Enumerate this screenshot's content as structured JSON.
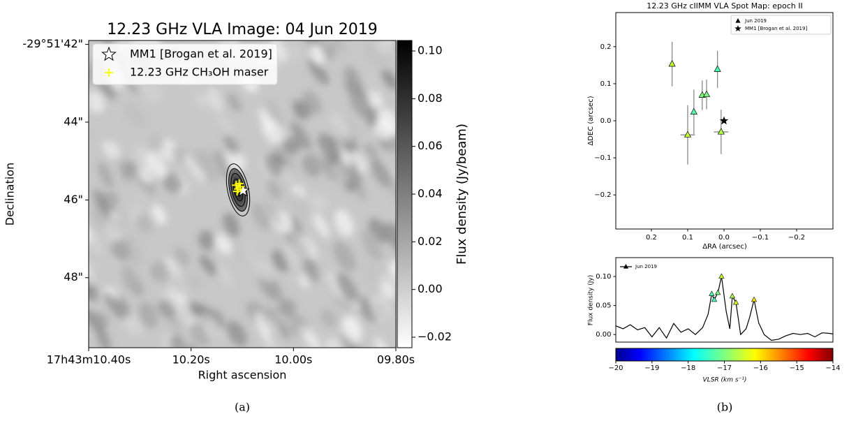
{
  "chart_data": [
    {
      "type": "image",
      "title": "12.23 GHz VLA Image: 04 Jun 2019",
      "x_label": "Right ascension",
      "y_label": "Declination",
      "xlim": [
        10.4,
        9.8
      ],
      "ylim": [
        49.8,
        41.9
      ],
      "xticks": [
        {
          "value": 10.4,
          "label": "17h43m10.40s"
        },
        {
          "value": 10.2,
          "label": "10.20s"
        },
        {
          "value": 10.0,
          "label": "10.00s"
        },
        {
          "value": 9.8,
          "label": "09.80s"
        }
      ],
      "yticks": [
        {
          "value": 42,
          "label": "-29°51'42\""
        },
        {
          "value": 44,
          "label": "44\""
        },
        {
          "value": 46,
          "label": "46\""
        },
        {
          "value": 48,
          "label": "48\""
        }
      ],
      "colorbar": {
        "label": "Flux density (Jy/beam)",
        "lim": [
          -0.0244,
          0.1044
        ],
        "ticks": [
          {
            "value": -0.02,
            "label": "−0.02"
          },
          {
            "value": 0,
            "label": "0.00"
          },
          {
            "value": 0.02,
            "label": "0.02"
          },
          {
            "value": 0.04,
            "label": "0.04"
          },
          {
            "value": 0.06,
            "label": "0.06"
          },
          {
            "value": 0.08,
            "label": "0.08"
          },
          {
            "value": 0.1,
            "label": "0.10"
          }
        ]
      },
      "legend": "upper left",
      "series": [
        {
          "name": "MM1 [Brogan et al. 2019]",
          "marker": "star",
          "color": "#ffffff",
          "x": [
            10.0986
          ],
          "values": [
            45.76
          ]
        },
        {
          "name": "12.23 GHz CH₃OH maser",
          "marker": "plus",
          "color": "#ffff00",
          "x": [
            10.112,
            10.108,
            10.104,
            10.11,
            10.106
          ],
          "values": [
            45.62,
            45.72,
            45.66,
            45.78,
            45.58
          ]
        }
      ]
    },
    {
      "type": "scatter",
      "title": "12.23 GHz cIIMM VLA Spot Map: epoch II",
      "x_label": "ΔRA (arcsec)",
      "y_label": "ΔDEC (arcsec)",
      "xlim": [
        0.298,
        -0.3
      ],
      "ylim": [
        -0.292,
        0.292
      ],
      "xticks": [
        0.2,
        0.1,
        {
          "value": 0,
          "label": "0.0"
        },
        {
          "value": -0.1,
          "label": "−0.1"
        },
        {
          "value": -0.2,
          "label": "−0.2"
        }
      ],
      "yticks": [
        {
          "value": -0.2,
          "label": "−0.2"
        },
        {
          "value": -0.1,
          "label": "−0.1"
        },
        {
          "value": 0,
          "label": "0.0"
        },
        0.1,
        0.2
      ],
      "legend": "upper right",
      "series": [
        {
          "name": "Jun 2019",
          "marker": "triangle",
          "color": "#000000",
          "x": [
            0.143,
            0.1,
            0.083,
            0.06,
            0.048,
            0.018,
            0.008
          ],
          "values": [
            0.153,
            -0.038,
            0.024,
            0.069,
            0.071,
            0.139,
            -0.03
          ],
          "yerr": [
            0.06,
            0.08,
            0.06,
            0.04,
            0.04,
            0.05,
            0.06
          ],
          "xerr": [
            0,
            0.02,
            0,
            0,
            0,
            0,
            0.02
          ],
          "colors": [
            "#c4ff33",
            "#c4ff33",
            "#4dffaa",
            "#7bff7b",
            "#7bff7b",
            "#45ffb2",
            "#b0ff47"
          ]
        },
        {
          "name": "MM1 [Brogan et al. 2019]",
          "marker": "star",
          "color": "#000000",
          "x": [
            0
          ],
          "values": [
            0
          ]
        }
      ]
    },
    {
      "type": "line",
      "y_label": "Flux density (Jy)",
      "x_label": "VLSR (km s⁻¹)",
      "xlim": [
        -20,
        -14
      ],
      "ylim": [
        -0.013,
        0.1325
      ],
      "yticks": [
        {
          "value": 0,
          "label": "0.00"
        },
        {
          "value": 0.05,
          "label": "0.05"
        },
        {
          "value": 0.1,
          "label": "0.10"
        }
      ],
      "xticks": [
        {
          "value": -20,
          "label": "−20"
        },
        {
          "value": -19,
          "label": "−19"
        },
        {
          "value": -18,
          "label": "−18"
        },
        {
          "value": -17,
          "label": "−17"
        },
        {
          "value": -16,
          "label": "−16"
        },
        {
          "value": -15,
          "label": "−15"
        },
        {
          "value": -14,
          "label": "−14"
        }
      ],
      "colormap": "jet",
      "legend": "upper left",
      "series": [
        {
          "name": "Jun 2019",
          "color": "#000000",
          "x": [
            -20,
            -19.8,
            -19.6,
            -19.4,
            -19.2,
            -19,
            -18.8,
            -18.6,
            -18.4,
            -18.2,
            -18,
            -17.8,
            -17.6,
            -17.45,
            -17.35,
            -17.28,
            -17.18,
            -17.08,
            -16.95,
            -16.85,
            -16.78,
            -16.68,
            -16.55,
            -16.4,
            -16.3,
            -16.18,
            -16.05,
            -15.9,
            -15.7,
            -15.5,
            -15.3,
            -15.1,
            -14.9,
            -14.7,
            -14.5,
            -14.3,
            -14.1,
            -14
          ],
          "values": [
            0.015,
            0.01,
            0.017,
            0.008,
            0.012,
            -0.004,
            0.012,
            -0.006,
            0.019,
            0.004,
            0.01,
            0.0,
            0.012,
            0.035,
            0.07,
            0.06,
            0.072,
            0.1,
            0.04,
            0.01,
            0.066,
            0.055,
            0.0,
            0.01,
            0.03,
            0.06,
            0.02,
            0.0,
            -0.01,
            -0.008,
            -0.002,
            0.002,
            0.0,
            0.002,
            -0.004,
            0.003,
            0.002,
            0.001
          ]
        },
        {
          "marker": "triangle",
          "x": [
            -17.35,
            -17.28,
            -17.18,
            -17.08,
            -16.78,
            -16.68,
            -16.18
          ],
          "values": [
            0.07,
            0.06,
            0.072,
            0.1,
            0.066,
            0.055,
            0.06
          ],
          "colors": [
            "#4dffaa",
            "#45ffb2",
            "#7bff7b",
            "#c4ff33",
            "#b0ff47",
            "#e0ff17",
            "#ffe600"
          ]
        }
      ]
    }
  ],
  "captions": [
    "(a)",
    "(b)"
  ]
}
